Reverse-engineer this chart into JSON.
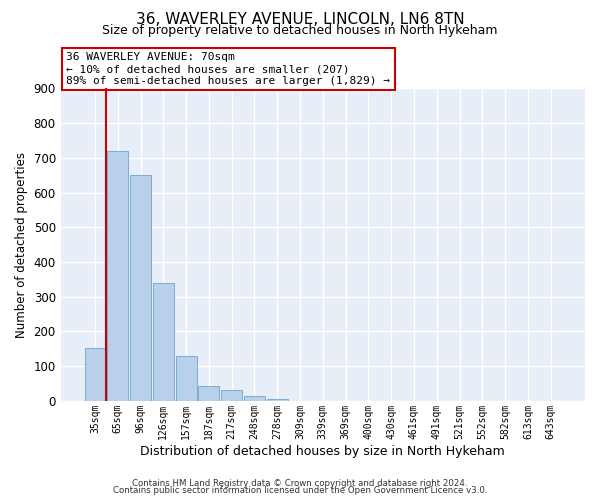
{
  "title": "36, WAVERLEY AVENUE, LINCOLN, LN6 8TN",
  "subtitle": "Size of property relative to detached houses in North Hykeham",
  "xlabel": "Distribution of detached houses by size in North Hykeham",
  "ylabel": "Number of detached properties",
  "bar_labels": [
    "35sqm",
    "65sqm",
    "96sqm",
    "126sqm",
    "157sqm",
    "187sqm",
    "217sqm",
    "248sqm",
    "278sqm",
    "309sqm",
    "339sqm",
    "369sqm",
    "400sqm",
    "430sqm",
    "461sqm",
    "491sqm",
    "521sqm",
    "552sqm",
    "582sqm",
    "613sqm",
    "643sqm"
  ],
  "bar_values": [
    152,
    720,
    650,
    340,
    130,
    43,
    32,
    13,
    5,
    0,
    0,
    0,
    0,
    0,
    0,
    0,
    0,
    0,
    0,
    0,
    0
  ],
  "bar_color": "#b8d0ea",
  "bar_edge_color": "#7aadd4",
  "bar_edge_width": 0.7,
  "vline_color": "#cc0000",
  "annotation_text": "36 WAVERLEY AVENUE: 70sqm\n← 10% of detached houses are smaller (207)\n89% of semi-detached houses are larger (1,829) →",
  "annotation_box_facecolor": "#ffffff",
  "annotation_box_edgecolor": "#cc0000",
  "ylim": [
    0,
    900
  ],
  "yticks": [
    0,
    100,
    200,
    300,
    400,
    500,
    600,
    700,
    800,
    900
  ],
  "footer_line1": "Contains HM Land Registry data © Crown copyright and database right 2024.",
  "footer_line2": "Contains public sector information licensed under the Open Government Licence v3.0.",
  "bg_color": "#e8eef8",
  "grid_color": "#ffffff",
  "title_fontsize": 11,
  "subtitle_fontsize": 9
}
